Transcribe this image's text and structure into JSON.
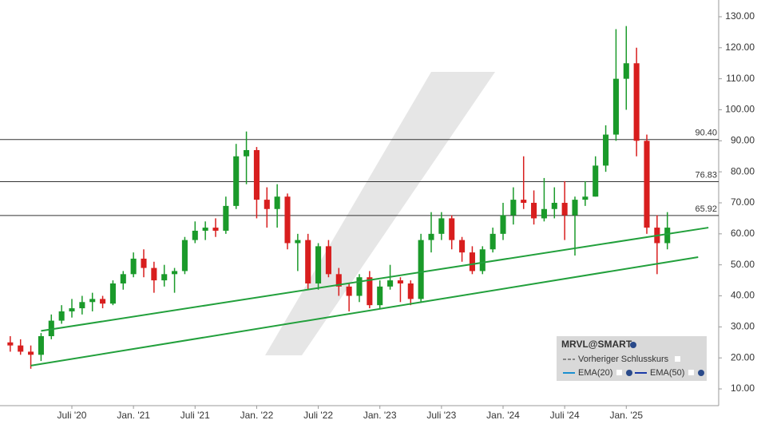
{
  "chart_data": {
    "type": "candlestick",
    "xlim": [
      "2019-12",
      "2025-10"
    ],
    "ylim": [
      4.6,
      135.4
    ],
    "yticks": [
      {
        "value": 10,
        "label": "10.00"
      },
      {
        "value": 20,
        "label": "20.00"
      },
      {
        "value": 30,
        "label": "30.00"
      },
      {
        "value": 40,
        "label": "40.00"
      },
      {
        "value": 50,
        "label": "50.00"
      },
      {
        "value": 60,
        "label": "60.00"
      },
      {
        "value": 70,
        "label": "70.00"
      },
      {
        "value": 80,
        "label": "80.00"
      },
      {
        "value": 90,
        "label": "90.00"
      },
      {
        "value": 100,
        "label": "100.00"
      },
      {
        "value": 110,
        "label": "110.00"
      },
      {
        "value": 120,
        "label": "120.00"
      },
      {
        "value": 130,
        "label": "130.00"
      }
    ],
    "xticks": [
      {
        "value": "2020-07",
        "label": "Juli '20"
      },
      {
        "value": "2021-01",
        "label": "Jan. '21"
      },
      {
        "value": "2021-07",
        "label": "Juli '21"
      },
      {
        "value": "2022-01",
        "label": "Jan. '22"
      },
      {
        "value": "2022-07",
        "label": "Juli '22"
      },
      {
        "value": "2023-01",
        "label": "Jan. '23"
      },
      {
        "value": "2023-07",
        "label": "Juli '23"
      },
      {
        "value": "2024-01",
        "label": "Jan. '24"
      },
      {
        "value": "2024-07",
        "label": "Juli '24"
      },
      {
        "value": "2025-01",
        "label": "Jan. '25"
      }
    ],
    "up_color": "#1a9a2a",
    "down_color": "#d81e1e",
    "x": [
      "2020-01",
      "2020-02",
      "2020-03",
      "2020-04",
      "2020-05",
      "2020-06",
      "2020-07",
      "2020-08",
      "2020-09",
      "2020-10",
      "2020-11",
      "2020-12",
      "2021-01",
      "2021-02",
      "2021-03",
      "2021-04",
      "2021-05",
      "2021-06",
      "2021-07",
      "2021-08",
      "2021-09",
      "2021-10",
      "2021-11",
      "2021-12",
      "2022-01",
      "2022-02",
      "2022-03",
      "2022-04",
      "2022-05",
      "2022-06",
      "2022-07",
      "2022-08",
      "2022-09",
      "2022-10",
      "2022-11",
      "2022-12",
      "2023-01",
      "2023-02",
      "2023-03",
      "2023-04",
      "2023-05",
      "2023-06",
      "2023-07",
      "2023-08",
      "2023-09",
      "2023-10",
      "2023-11",
      "2023-12",
      "2024-01",
      "2024-02",
      "2024-03",
      "2024-04",
      "2024-05",
      "2024-06",
      "2024-07",
      "2024-08",
      "2024-09",
      "2024-10",
      "2024-11",
      "2024-12",
      "2025-01",
      "2025-02",
      "2025-03",
      "2025-04",
      "2025-05"
    ],
    "open": [
      25,
      24,
      22,
      21,
      27,
      32,
      35,
      36,
      38,
      39,
      37.5,
      44,
      47,
      52,
      49,
      45,
      47,
      48,
      58,
      61,
      62,
      61,
      69,
      85,
      87,
      71,
      68,
      72,
      57,
      58,
      44,
      56,
      47,
      43,
      40,
      46,
      37,
      43,
      45,
      44,
      39,
      58,
      60,
      65,
      58,
      54,
      48,
      55,
      60,
      66,
      71,
      70,
      65,
      68,
      70,
      66,
      71,
      72,
      82,
      92,
      110,
      115,
      90,
      62,
      57
    ],
    "high": [
      27,
      26,
      24,
      28,
      34,
      37,
      39,
      40,
      41,
      40,
      45,
      48,
      54,
      55,
      51,
      50,
      49,
      59,
      64,
      64,
      65,
      72,
      89,
      93,
      88,
      75,
      76,
      73,
      60,
      60,
      57,
      58,
      49,
      44,
      47,
      48,
      45,
      50,
      46,
      45,
      60,
      67,
      67,
      66,
      59,
      56,
      56,
      62,
      70,
      75,
      85,
      74,
      78,
      75,
      77,
      72,
      77,
      85,
      95,
      126,
      127,
      120,
      92,
      66,
      67
    ],
    "low": [
      22,
      21,
      16.5,
      19,
      26,
      31,
      33,
      34,
      35,
      36,
      37,
      42,
      46,
      46,
      41,
      43,
      41,
      47,
      57,
      58,
      59,
      60,
      68,
      76,
      65,
      62,
      62,
      55,
      48,
      42,
      42,
      46,
      40,
      35,
      38,
      36,
      36,
      42,
      38,
      37,
      38,
      54,
      58,
      55,
      51,
      47,
      47,
      54,
      58,
      63,
      68,
      63,
      64,
      65,
      58,
      53,
      69,
      72,
      80,
      90,
      100,
      85,
      60,
      47,
      55
    ],
    "close": [
      24,
      22,
      21,
      27,
      32,
      35,
      36,
      38,
      39,
      37.5,
      44,
      47,
      52,
      49,
      45,
      47,
      48,
      58,
      61,
      62,
      61,
      69,
      85,
      87,
      71,
      68,
      72,
      57,
      58,
      44,
      56,
      47,
      43,
      40,
      46,
      37,
      43,
      45,
      44,
      39,
      58,
      60,
      65,
      58,
      54,
      48,
      55,
      60,
      66,
      71,
      70,
      65,
      68,
      70,
      66,
      71,
      72,
      82,
      92,
      110,
      115,
      90,
      62,
      57,
      62
    ],
    "levels": {
      "color": "#333333",
      "values": [
        90.4,
        76.83,
        65.92
      ],
      "value_labels": [
        "90.40",
        "76.83",
        "65.92"
      ]
    },
    "trendlines": [
      {
        "color": "#22a03c",
        "points": [
          [
            "2020-04",
            28.7
          ],
          [
            "2025-09",
            62
          ]
        ]
      },
      {
        "color": "#22a03c",
        "points": [
          [
            "2020-03",
            17.5
          ],
          [
            "2025-08",
            52.5
          ]
        ]
      }
    ],
    "legend": {
      "symbol": "MRVL@SMART",
      "entries": [
        "Vorheriger Schlusskurs",
        "EMA(20)",
        "EMA(50)"
      ]
    }
  }
}
